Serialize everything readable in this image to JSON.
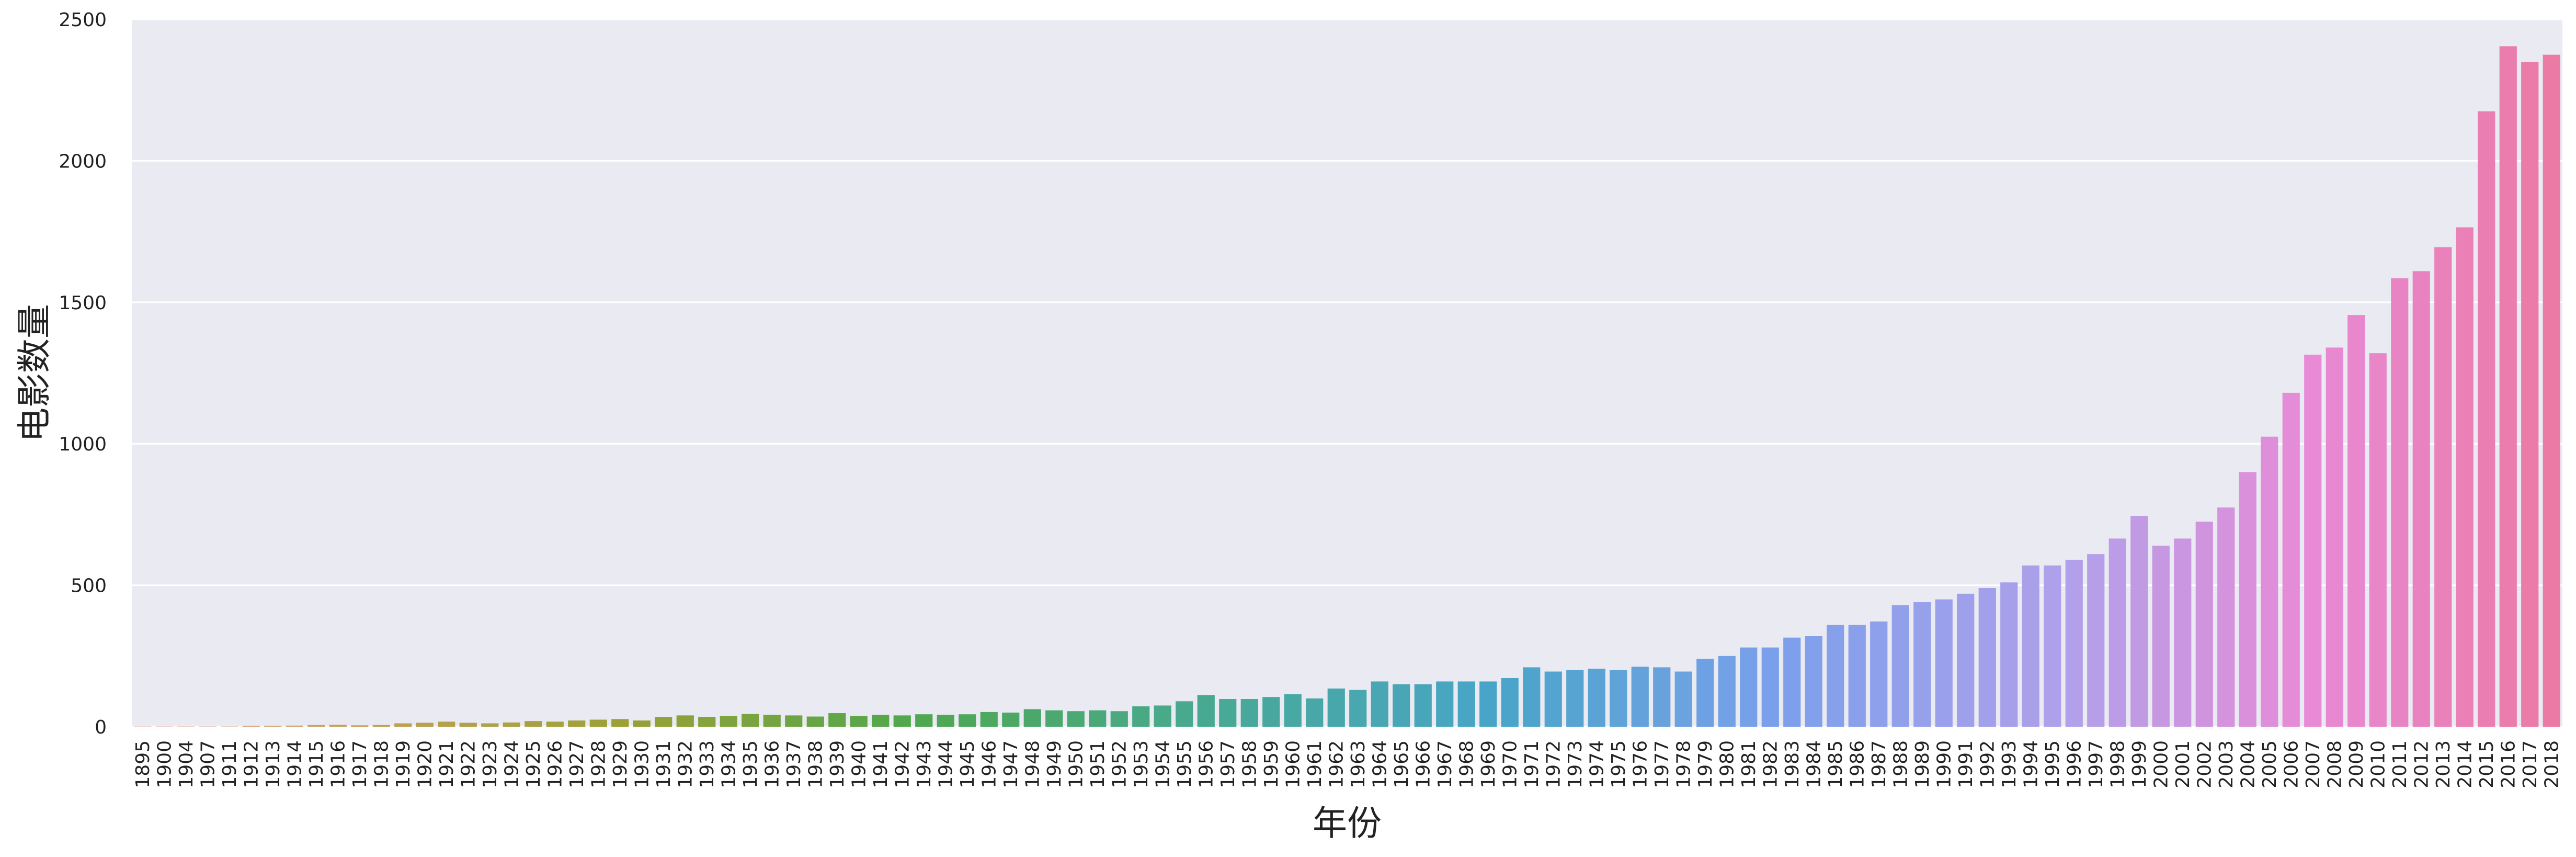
{
  "chart_data": {
    "type": "bar",
    "title": "",
    "xlabel": "年份",
    "ylabel": "电影数量",
    "ylim": [
      0,
      2500
    ],
    "yticks": [
      "0",
      "500",
      "1000",
      "1500",
      "2000",
      "2500"
    ],
    "grid": true,
    "legend": "none",
    "categories": [
      "1895",
      "1900",
      "1904",
      "1907",
      "1911",
      "1912",
      "1913",
      "1914",
      "1915",
      "1916",
      "1917",
      "1918",
      "1919",
      "1920",
      "1921",
      "1922",
      "1923",
      "1924",
      "1925",
      "1926",
      "1927",
      "1928",
      "1929",
      "1930",
      "1931",
      "1932",
      "1933",
      "1934",
      "1935",
      "1936",
      "1937",
      "1938",
      "1939",
      "1940",
      "1941",
      "1942",
      "1943",
      "1944",
      "1945",
      "1946",
      "1947",
      "1948",
      "1949",
      "1950",
      "1951",
      "1952",
      "1953",
      "1954",
      "1955",
      "1956",
      "1957",
      "1958",
      "1959",
      "1960",
      "1961",
      "1962",
      "1963",
      "1964",
      "1965",
      "1966",
      "1967",
      "1968",
      "1969",
      "1970",
      "1971",
      "1972",
      "1973",
      "1974",
      "1975",
      "1976",
      "1977",
      "1978",
      "1979",
      "1980",
      "1981",
      "1982",
      "1983",
      "1984",
      "1985",
      "1986",
      "1987",
      "1988",
      "1989",
      "1990",
      "1991",
      "1992",
      "1993",
      "1994",
      "1995",
      "1996",
      "1997",
      "1998",
      "1999",
      "2000",
      "2001",
      "2002",
      "2003",
      "2004",
      "2005",
      "2006",
      "2007",
      "2008",
      "2009",
      "2010",
      "2011",
      "2012",
      "2013",
      "2014",
      "2015",
      "2016",
      "2017",
      "2018"
    ],
    "values": [
      1,
      1,
      1,
      1,
      1,
      3,
      3,
      4,
      6,
      7,
      5,
      6,
      12,
      14,
      18,
      14,
      12,
      15,
      20,
      18,
      22,
      25,
      27,
      22,
      35,
      40,
      35,
      38,
      45,
      42,
      40,
      36,
      48,
      38,
      42,
      40,
      44,
      42,
      44,
      52,
      50,
      62,
      58,
      55,
      58,
      55,
      72,
      75,
      90,
      112,
      98,
      98,
      105,
      115,
      100,
      135,
      130,
      160,
      150,
      150,
      160,
      160,
      160,
      172,
      210,
      195,
      200,
      205,
      200,
      212,
      210,
      195,
      240,
      250,
      280,
      280,
      315,
      320,
      360,
      360,
      372,
      430,
      440,
      450,
      470,
      490,
      510,
      570,
      570,
      590,
      610,
      665,
      745,
      640,
      665,
      725,
      775,
      900,
      1025,
      1180,
      1315,
      1340,
      1455,
      1320,
      1585,
      1610,
      1695,
      1765,
      2175,
      2405,
      2350,
      2375
    ]
  }
}
